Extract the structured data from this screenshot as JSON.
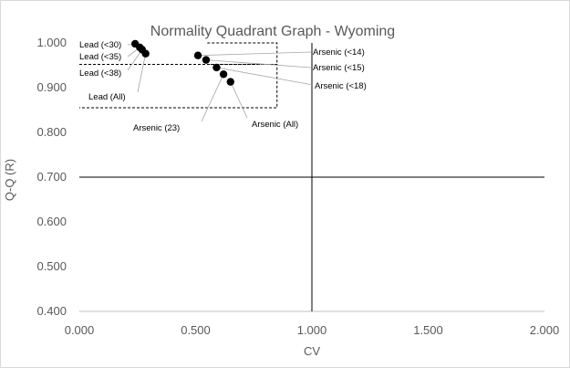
{
  "chart_data": {
    "type": "scatter",
    "title": "Normality Quadrant Graph - Wyoming",
    "xlabel": "CV",
    "ylabel": "Q-Q (R)",
    "xlim": [
      0.0,
      2.0
    ],
    "ylim": [
      0.4,
      1.0
    ],
    "x_ticks": [
      "0.000",
      "0.500",
      "1.000",
      "1.500",
      "2.000"
    ],
    "y_ticks": [
      "1.000",
      "0.900",
      "0.800",
      "0.700",
      "0.600",
      "0.500",
      "0.400"
    ],
    "grid": false,
    "legend": "none",
    "points": [
      {
        "label": "Lead (<30)",
        "x": 0.24,
        "y": 0.998
      },
      {
        "label": "Lead (<35)",
        "x": 0.26,
        "y": 0.99
      },
      {
        "label": "Lead (<38)",
        "x": 0.27,
        "y": 0.985
      },
      {
        "label": "Lead (All)",
        "x": 0.285,
        "y": 0.976
      },
      {
        "label": "Arsenic (<14)",
        "x": 0.51,
        "y": 0.972
      },
      {
        "label": "Arsenic (<15)",
        "x": 0.545,
        "y": 0.962
      },
      {
        "label": "Arsenic (<18)",
        "x": 0.59,
        "y": 0.945
      },
      {
        "label": "Arsenic (23)",
        "x": 0.62,
        "y": 0.93
      },
      {
        "label": "Arsenic (All)",
        "x": 0.65,
        "y": 0.913
      }
    ],
    "reference_lines": {
      "x": 1.0,
      "y": 0.7
    },
    "dashed_boxes": [
      {
        "x": [
          0.0,
          0.85
        ],
        "y": [
          0.855,
          0.952
        ]
      },
      {
        "x": [
          0.55,
          0.85
        ],
        "y": [
          0.952,
          1.0
        ]
      }
    ],
    "colors": {
      "points": "#000000",
      "axis_text": "#595959",
      "axis_line": "#bfbfbf",
      "reference_line": "#000000"
    }
  }
}
